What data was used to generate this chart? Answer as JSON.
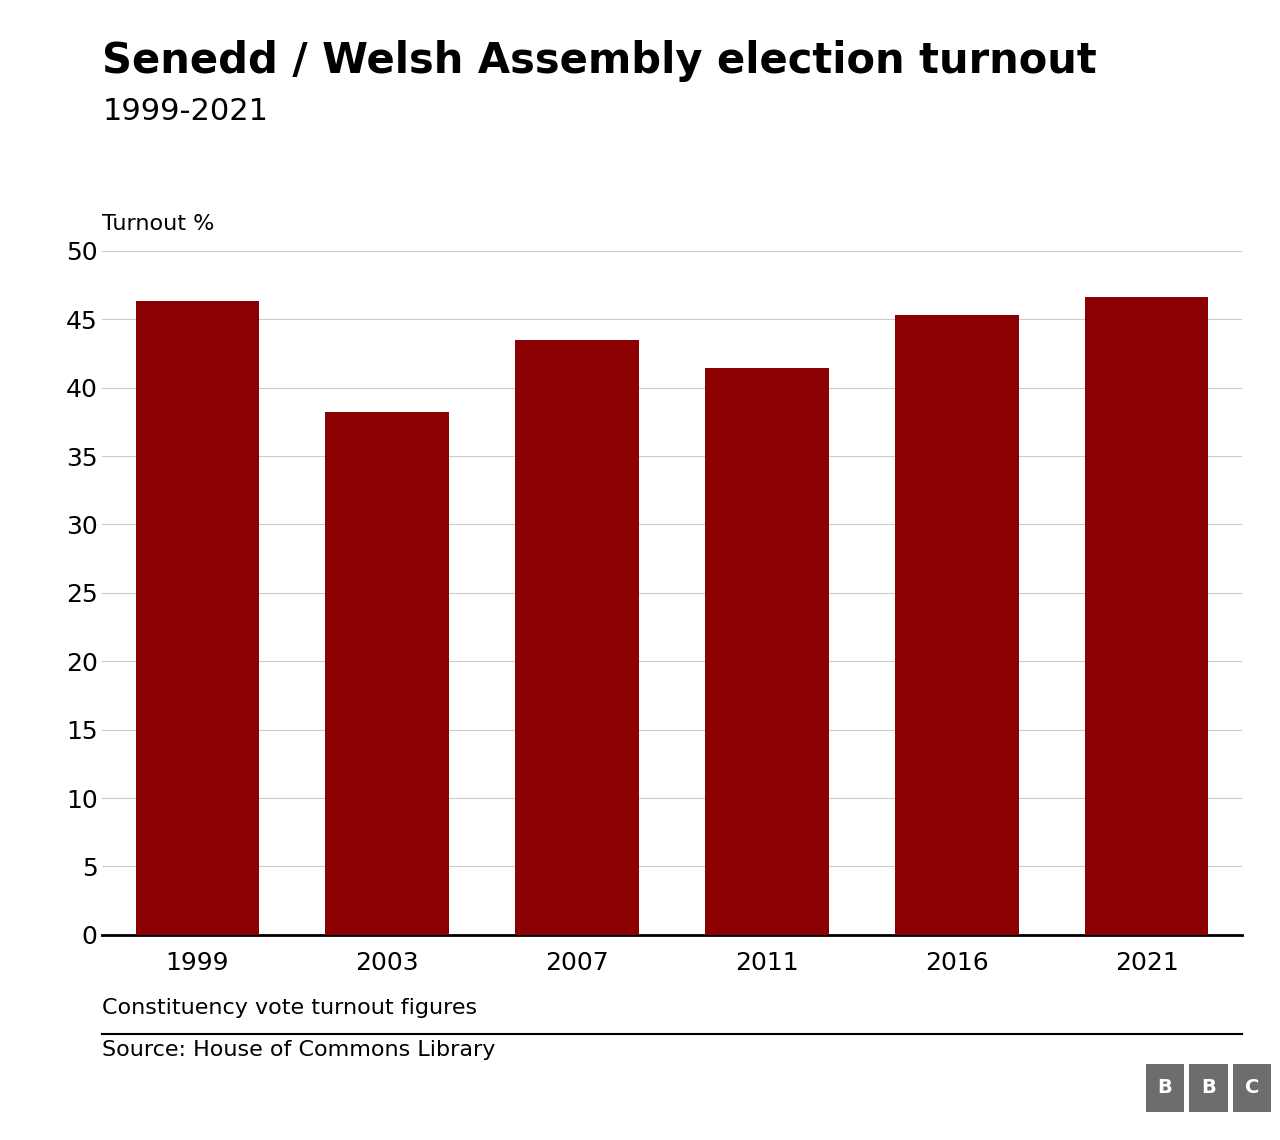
{
  "title_line1": "Senedd / Welsh Assembly election turnout",
  "title_line2": "1999-2021",
  "ylabel": "Turnout %",
  "years": [
    "1999",
    "2003",
    "2007",
    "2011",
    "2016",
    "2021"
  ],
  "values": [
    46.3,
    38.2,
    43.5,
    41.4,
    45.3,
    46.6
  ],
  "bar_color": "#8b0000",
  "ylim": [
    0,
    50
  ],
  "yticks": [
    0,
    5,
    10,
    15,
    20,
    25,
    30,
    35,
    40,
    45,
    50
  ],
  "footnote": "Constituency vote turnout figures",
  "source": "Source: House of Commons Library",
  "background_color": "#ffffff",
  "title_fontsize": 30,
  "subtitle_fontsize": 22,
  "ylabel_fontsize": 16,
  "tick_fontsize": 18,
  "footnote_fontsize": 16,
  "source_fontsize": 16,
  "bbc_color": "#6d6d6d"
}
